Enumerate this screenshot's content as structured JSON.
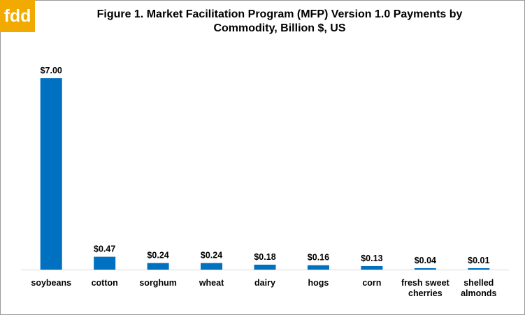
{
  "logo": {
    "text": "fdd"
  },
  "chart_data": {
    "type": "bar",
    "title_line1": "Figure 1.  Market Facilitation Program (MFP) Version 1.0 Payments by",
    "title_line2": "Commodity, Billion $, US",
    "categories": [
      [
        "soybeans"
      ],
      [
        "cotton"
      ],
      [
        "sorghum"
      ],
      [
        "wheat"
      ],
      [
        "dairy"
      ],
      [
        "hogs"
      ],
      [
        "corn"
      ],
      [
        "fresh sweet",
        "cherries"
      ],
      [
        "shelled",
        "almonds"
      ]
    ],
    "values": [
      7.0,
      0.47,
      0.24,
      0.24,
      0.18,
      0.16,
      0.13,
      0.04,
      0.01
    ],
    "data_labels": [
      "$7.00",
      "$0.47",
      "$0.24",
      "$0.24",
      "$0.18",
      "$0.16",
      "$0.13",
      "$0.04",
      "$0.01"
    ],
    "ylim": [
      0,
      7.0
    ],
    "grid": false,
    "legend": "none",
    "bar_color": "#0070c0"
  }
}
